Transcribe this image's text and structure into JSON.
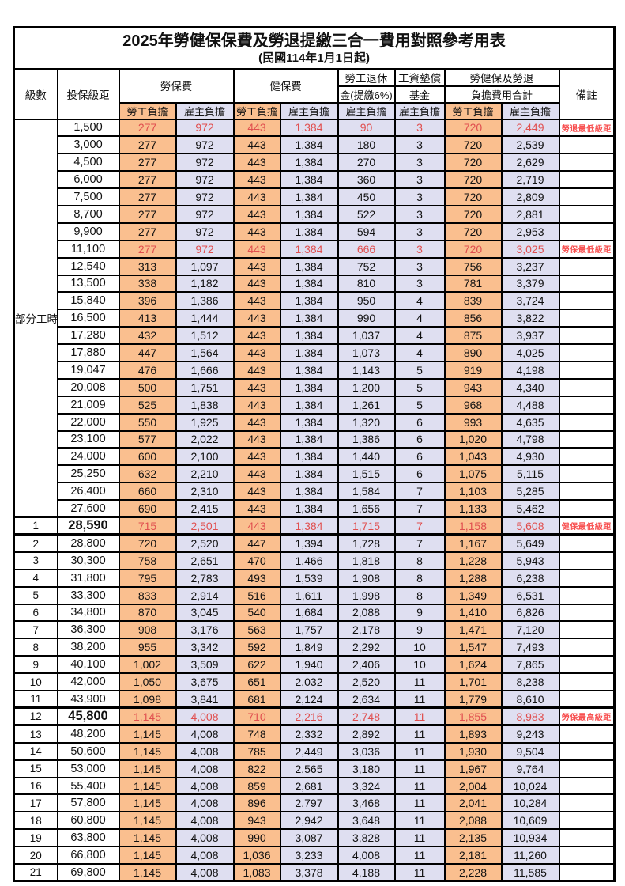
{
  "title": "2025年勞健保保費及勞退提繳三合一費用對照參考用表",
  "subtitle": "(民國114年1月1日起)",
  "columns": {
    "level": "級數",
    "bracket": "投保級距",
    "labor_fee": "勞保費",
    "health_fee": "健保費",
    "pension_line1": "勞工退休",
    "pension_line2": "金(提繳6%)",
    "wage_fund_line1": "工資墊償",
    "wage_fund_line2": "基金",
    "total_line1": "勞健保及勞退",
    "total_line2": "負擔費用合計",
    "remark": "備註",
    "employee_burden": "勞工負擔",
    "employer_burden": "雇主負擔"
  },
  "part_time_label": "部分工時",
  "part_time_rowspan": 23,
  "colors": {
    "employee_bg": "#fabf8f",
    "employer_bg": "#dfdff1",
    "highlight_number": "#e04f4f",
    "remark_text": "#f85050",
    "border": "#000000"
  },
  "rows": [
    {
      "level": "",
      "bracket": "1,500",
      "v": [
        "277",
        "972",
        "443",
        "1,384",
        "90",
        "3",
        "720",
        "2,449"
      ],
      "remark": "勞退最低級距",
      "red": true,
      "bold": false,
      "emphasis": false
    },
    {
      "level": "",
      "bracket": "3,000",
      "v": [
        "277",
        "972",
        "443",
        "1,384",
        "180",
        "3",
        "720",
        "2,539"
      ],
      "remark": "",
      "red": false,
      "bold": false,
      "emphasis": false
    },
    {
      "level": "",
      "bracket": "4,500",
      "v": [
        "277",
        "972",
        "443",
        "1,384",
        "270",
        "3",
        "720",
        "2,629"
      ],
      "remark": "",
      "red": false,
      "bold": false,
      "emphasis": false
    },
    {
      "level": "",
      "bracket": "6,000",
      "v": [
        "277",
        "972",
        "443",
        "1,384",
        "360",
        "3",
        "720",
        "2,719"
      ],
      "remark": "",
      "red": false,
      "bold": false,
      "emphasis": false
    },
    {
      "level": "",
      "bracket": "7,500",
      "v": [
        "277",
        "972",
        "443",
        "1,384",
        "450",
        "3",
        "720",
        "2,809"
      ],
      "remark": "",
      "red": false,
      "bold": false,
      "emphasis": false
    },
    {
      "level": "",
      "bracket": "8,700",
      "v": [
        "277",
        "972",
        "443",
        "1,384",
        "522",
        "3",
        "720",
        "2,881"
      ],
      "remark": "",
      "red": false,
      "bold": false,
      "emphasis": false
    },
    {
      "level": "",
      "bracket": "9,900",
      "v": [
        "277",
        "972",
        "443",
        "1,384",
        "594",
        "3",
        "720",
        "2,953"
      ],
      "remark": "",
      "red": false,
      "bold": false,
      "emphasis": false
    },
    {
      "level": "",
      "bracket": "11,100",
      "v": [
        "277",
        "972",
        "443",
        "1,384",
        "666",
        "3",
        "720",
        "3,025"
      ],
      "remark": "勞保最低級距",
      "red": true,
      "bold": false,
      "emphasis": false
    },
    {
      "level": "",
      "bracket": "12,540",
      "v": [
        "313",
        "1,097",
        "443",
        "1,384",
        "752",
        "3",
        "756",
        "3,237"
      ],
      "remark": "",
      "red": false,
      "bold": false,
      "emphasis": false
    },
    {
      "level": "",
      "bracket": "13,500",
      "v": [
        "338",
        "1,182",
        "443",
        "1,384",
        "810",
        "3",
        "781",
        "3,379"
      ],
      "remark": "",
      "red": false,
      "bold": false,
      "emphasis": false
    },
    {
      "level": "",
      "bracket": "15,840",
      "v": [
        "396",
        "1,386",
        "443",
        "1,384",
        "950",
        "4",
        "839",
        "3,724"
      ],
      "remark": "",
      "red": false,
      "bold": false,
      "emphasis": false
    },
    {
      "level": "",
      "bracket": "16,500",
      "v": [
        "413",
        "1,444",
        "443",
        "1,384",
        "990",
        "4",
        "856",
        "3,822"
      ],
      "remark": "",
      "red": false,
      "bold": false,
      "emphasis": false
    },
    {
      "level": "",
      "bracket": "17,280",
      "v": [
        "432",
        "1,512",
        "443",
        "1,384",
        "1,037",
        "4",
        "875",
        "3,937"
      ],
      "remark": "",
      "red": false,
      "bold": false,
      "emphasis": false
    },
    {
      "level": "",
      "bracket": "17,880",
      "v": [
        "447",
        "1,564",
        "443",
        "1,384",
        "1,073",
        "4",
        "890",
        "4,025"
      ],
      "remark": "",
      "red": false,
      "bold": false,
      "emphasis": false
    },
    {
      "level": "",
      "bracket": "19,047",
      "v": [
        "476",
        "1,666",
        "443",
        "1,384",
        "1,143",
        "5",
        "919",
        "4,198"
      ],
      "remark": "",
      "red": false,
      "bold": false,
      "emphasis": false
    },
    {
      "level": "",
      "bracket": "20,008",
      "v": [
        "500",
        "1,751",
        "443",
        "1,384",
        "1,200",
        "5",
        "943",
        "4,340"
      ],
      "remark": "",
      "red": false,
      "bold": false,
      "emphasis": false
    },
    {
      "level": "",
      "bracket": "21,009",
      "v": [
        "525",
        "1,838",
        "443",
        "1,384",
        "1,261",
        "5",
        "968",
        "4,488"
      ],
      "remark": "",
      "red": false,
      "bold": false,
      "emphasis": false
    },
    {
      "level": "",
      "bracket": "22,000",
      "v": [
        "550",
        "1,925",
        "443",
        "1,384",
        "1,320",
        "6",
        "993",
        "4,635"
      ],
      "remark": "",
      "red": false,
      "bold": false,
      "emphasis": false
    },
    {
      "level": "",
      "bracket": "23,100",
      "v": [
        "577",
        "2,022",
        "443",
        "1,384",
        "1,386",
        "6",
        "1,020",
        "4,798"
      ],
      "remark": "",
      "red": false,
      "bold": false,
      "emphasis": false
    },
    {
      "level": "",
      "bracket": "24,000",
      "v": [
        "600",
        "2,100",
        "443",
        "1,384",
        "1,440",
        "6",
        "1,043",
        "4,930"
      ],
      "remark": "",
      "red": false,
      "bold": false,
      "emphasis": false
    },
    {
      "level": "",
      "bracket": "25,250",
      "v": [
        "632",
        "2,210",
        "443",
        "1,384",
        "1,515",
        "6",
        "1,075",
        "5,115"
      ],
      "remark": "",
      "red": false,
      "bold": false,
      "emphasis": false
    },
    {
      "level": "",
      "bracket": "26,400",
      "v": [
        "660",
        "2,310",
        "443",
        "1,384",
        "1,584",
        "7",
        "1,103",
        "5,285"
      ],
      "remark": "",
      "red": false,
      "bold": false,
      "emphasis": false
    },
    {
      "level": "",
      "bracket": "27,600",
      "v": [
        "690",
        "2,415",
        "443",
        "1,384",
        "1,656",
        "7",
        "1,133",
        "5,462"
      ],
      "remark": "",
      "red": false,
      "bold": false,
      "emphasis": false
    },
    {
      "level": "1",
      "bracket": "28,590",
      "v": [
        "715",
        "2,501",
        "443",
        "1,384",
        "1,715",
        "7",
        "1,158",
        "5,608"
      ],
      "remark": "健保最低級距",
      "red": true,
      "bold": true,
      "emphasis": true
    },
    {
      "level": "2",
      "bracket": "28,800",
      "v": [
        "720",
        "2,520",
        "447",
        "1,394",
        "1,728",
        "7",
        "1,167",
        "5,649"
      ],
      "remark": "",
      "red": false,
      "bold": false,
      "emphasis": false
    },
    {
      "level": "3",
      "bracket": "30,300",
      "v": [
        "758",
        "2,651",
        "470",
        "1,466",
        "1,818",
        "8",
        "1,228",
        "5,943"
      ],
      "remark": "",
      "red": false,
      "bold": false,
      "emphasis": false
    },
    {
      "level": "4",
      "bracket": "31,800",
      "v": [
        "795",
        "2,783",
        "493",
        "1,539",
        "1,908",
        "8",
        "1,288",
        "6,238"
      ],
      "remark": "",
      "red": false,
      "bold": false,
      "emphasis": false
    },
    {
      "level": "5",
      "bracket": "33,300",
      "v": [
        "833",
        "2,914",
        "516",
        "1,611",
        "1,998",
        "8",
        "1,349",
        "6,531"
      ],
      "remark": "",
      "red": false,
      "bold": false,
      "emphasis": false
    },
    {
      "level": "6",
      "bracket": "34,800",
      "v": [
        "870",
        "3,045",
        "540",
        "1,684",
        "2,088",
        "9",
        "1,410",
        "6,826"
      ],
      "remark": "",
      "red": false,
      "bold": false,
      "emphasis": false
    },
    {
      "level": "7",
      "bracket": "36,300",
      "v": [
        "908",
        "3,176",
        "563",
        "1,757",
        "2,178",
        "9",
        "1,471",
        "7,120"
      ],
      "remark": "",
      "red": false,
      "bold": false,
      "emphasis": false
    },
    {
      "level": "8",
      "bracket": "38,200",
      "v": [
        "955",
        "3,342",
        "592",
        "1,849",
        "2,292",
        "10",
        "1,547",
        "7,493"
      ],
      "remark": "",
      "red": false,
      "bold": false,
      "emphasis": false
    },
    {
      "level": "9",
      "bracket": "40,100",
      "v": [
        "1,002",
        "3,509",
        "622",
        "1,940",
        "2,406",
        "10",
        "1,624",
        "7,865"
      ],
      "remark": "",
      "red": false,
      "bold": false,
      "emphasis": false
    },
    {
      "level": "10",
      "bracket": "42,000",
      "v": [
        "1,050",
        "3,675",
        "651",
        "2,032",
        "2,520",
        "11",
        "1,701",
        "8,238"
      ],
      "remark": "",
      "red": false,
      "bold": false,
      "emphasis": false
    },
    {
      "level": "11",
      "bracket": "43,900",
      "v": [
        "1,098",
        "3,841",
        "681",
        "2,124",
        "2,634",
        "11",
        "1,779",
        "8,610"
      ],
      "remark": "",
      "red": false,
      "bold": false,
      "emphasis": false
    },
    {
      "level": "12",
      "bracket": "45,800",
      "v": [
        "1,145",
        "4,008",
        "710",
        "2,216",
        "2,748",
        "11",
        "1,855",
        "8,983"
      ],
      "remark": "勞保最高級距",
      "red": true,
      "bold": true,
      "emphasis": true
    },
    {
      "level": "13",
      "bracket": "48,200",
      "v": [
        "1,145",
        "4,008",
        "748",
        "2,332",
        "2,892",
        "11",
        "1,893",
        "9,243"
      ],
      "remark": "",
      "red": false,
      "bold": false,
      "emphasis": false
    },
    {
      "level": "14",
      "bracket": "50,600",
      "v": [
        "1,145",
        "4,008",
        "785",
        "2,449",
        "3,036",
        "11",
        "1,930",
        "9,504"
      ],
      "remark": "",
      "red": false,
      "bold": false,
      "emphasis": false
    },
    {
      "level": "15",
      "bracket": "53,000",
      "v": [
        "1,145",
        "4,008",
        "822",
        "2,565",
        "3,180",
        "11",
        "1,967",
        "9,764"
      ],
      "remark": "",
      "red": false,
      "bold": false,
      "emphasis": false
    },
    {
      "level": "16",
      "bracket": "55,400",
      "v": [
        "1,145",
        "4,008",
        "859",
        "2,681",
        "3,324",
        "11",
        "2,004",
        "10,024"
      ],
      "remark": "",
      "red": false,
      "bold": false,
      "emphasis": false
    },
    {
      "level": "17",
      "bracket": "57,800",
      "v": [
        "1,145",
        "4,008",
        "896",
        "2,797",
        "3,468",
        "11",
        "2,041",
        "10,284"
      ],
      "remark": "",
      "red": false,
      "bold": false,
      "emphasis": false
    },
    {
      "level": "18",
      "bracket": "60,800",
      "v": [
        "1,145",
        "4,008",
        "943",
        "2,942",
        "3,648",
        "11",
        "2,088",
        "10,609"
      ],
      "remark": "",
      "red": false,
      "bold": false,
      "emphasis": false
    },
    {
      "level": "19",
      "bracket": "63,800",
      "v": [
        "1,145",
        "4,008",
        "990",
        "3,087",
        "3,828",
        "11",
        "2,135",
        "10,934"
      ],
      "remark": "",
      "red": false,
      "bold": false,
      "emphasis": false
    },
    {
      "level": "20",
      "bracket": "66,800",
      "v": [
        "1,145",
        "4,008",
        "1,036",
        "3,233",
        "4,008",
        "11",
        "2,181",
        "11,260"
      ],
      "remark": "",
      "red": false,
      "bold": false,
      "emphasis": false
    },
    {
      "level": "21",
      "bracket": "69,800",
      "v": [
        "1,145",
        "4,008",
        "1,083",
        "3,378",
        "4,188",
        "11",
        "2,228",
        "11,585"
      ],
      "remark": "",
      "red": false,
      "bold": false,
      "emphasis": false
    }
  ]
}
